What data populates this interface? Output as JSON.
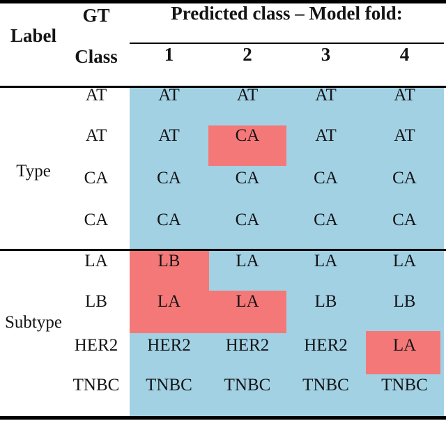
{
  "colors": {
    "cell-blue": "#a2d1e4",
    "cell-red": "#f57878",
    "rule-black": "#000000"
  },
  "header": {
    "label_col": "Label",
    "gt_col_line1": "GT",
    "gt_col_line2": "Class",
    "predicted_title": "Predicted class – Model fold:",
    "folds": [
      "1",
      "2",
      "3",
      "4"
    ]
  },
  "sections": [
    {
      "label": "Type",
      "rows": [
        {
          "gt": "AT",
          "preds": [
            {
              "v": "AT",
              "err": false
            },
            {
              "v": "AT",
              "err": false
            },
            {
              "v": "AT",
              "err": false
            },
            {
              "v": "AT",
              "err": false
            }
          ]
        },
        {
          "gt": "AT",
          "preds": [
            {
              "v": "AT",
              "err": false
            },
            {
              "v": "CA",
              "err": true
            },
            {
              "v": "AT",
              "err": false
            },
            {
              "v": "AT",
              "err": false
            }
          ]
        },
        {
          "gt": "CA",
          "preds": [
            {
              "v": "CA",
              "err": false
            },
            {
              "v": "CA",
              "err": false
            },
            {
              "v": "CA",
              "err": false
            },
            {
              "v": "CA",
              "err": false
            }
          ]
        },
        {
          "gt": "CA",
          "preds": [
            {
              "v": "CA",
              "err": false
            },
            {
              "v": "CA",
              "err": false
            },
            {
              "v": "CA",
              "err": false
            },
            {
              "v": "CA",
              "err": false
            }
          ]
        }
      ]
    },
    {
      "label": "Subtype",
      "rows": [
        {
          "gt": "LA",
          "preds": [
            {
              "v": "LB",
              "err": true
            },
            {
              "v": "LA",
              "err": false
            },
            {
              "v": "LA",
              "err": false
            },
            {
              "v": "LA",
              "err": false
            }
          ]
        },
        {
          "gt": "LB",
          "preds": [
            {
              "v": "LA",
              "err": true
            },
            {
              "v": "LA",
              "err": true
            },
            {
              "v": "LB",
              "err": false
            },
            {
              "v": "LB",
              "err": false
            }
          ]
        },
        {
          "gt": "HER2",
          "preds": [
            {
              "v": "HER2",
              "err": false
            },
            {
              "v": "HER2",
              "err": false
            },
            {
              "v": "HER2",
              "err": false
            },
            {
              "v": "LA",
              "err": true
            }
          ]
        },
        {
          "gt": "TNBC",
          "preds": [
            {
              "v": "TNBC",
              "err": false
            },
            {
              "v": "TNBC",
              "err": false
            },
            {
              "v": "TNBC",
              "err": false
            },
            {
              "v": "TNBC",
              "err": false
            }
          ]
        }
      ]
    }
  ]
}
